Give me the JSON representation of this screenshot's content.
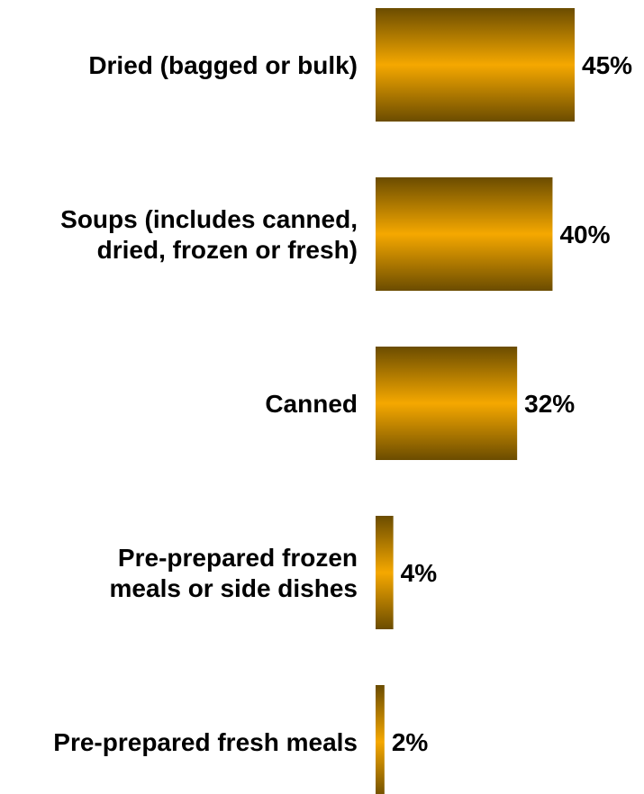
{
  "chart_data": {
    "type": "bar",
    "orientation": "horizontal",
    "categories": [
      "Dried (bagged or bulk)",
      "Soups (includes canned, dried, frozen or fresh)",
      "Canned",
      "Pre-prepared frozen meals or side dishes",
      "Pre-prepared fresh meals"
    ],
    "category_lines": [
      [
        "Dried (bagged or bulk)"
      ],
      [
        "Soups (includes canned,",
        "dried, frozen or fresh)"
      ],
      [
        "Canned"
      ],
      [
        "Pre-prepared frozen",
        "meals or side dishes"
      ],
      [
        "Pre-prepared fresh meals"
      ]
    ],
    "values": [
      45,
      40,
      32,
      4,
      2
    ],
    "data_labels": [
      "45%",
      "40%",
      "32%",
      "4%",
      "2%"
    ],
    "unit": "%",
    "title": "",
    "xlabel": "",
    "ylabel": "",
    "grid": false,
    "legend": "none"
  },
  "colors": {
    "bar_edge": "#6b4c00",
    "bar_mid": "#f5a800",
    "text": "#000000",
    "background": "#ffffff"
  }
}
